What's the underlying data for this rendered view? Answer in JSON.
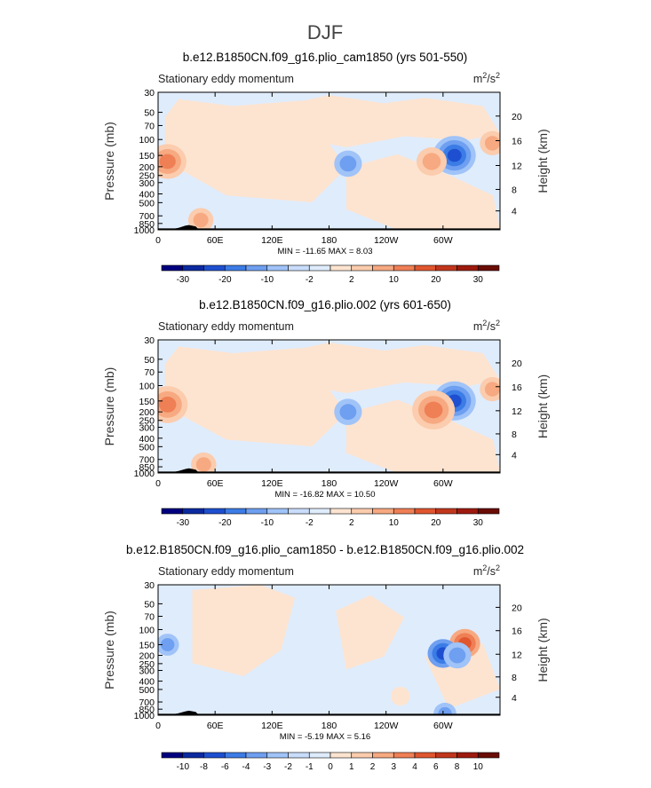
{
  "figure_title": "DJF",
  "chart_data": [
    {
      "type": "heatmap",
      "title": "b.e12.B1850CN.f09_g16.plio_cam1850 (yrs 501-550)",
      "subtitle_left": "Stationary eddy momentum",
      "units": "m²/s²",
      "units_base": "m",
      "units_exp1": "2",
      "units_mid": "/s",
      "units_exp2": "2",
      "ylabel": "Pressure (mb)",
      "ylabel_right": "Height (km)",
      "x_ticks": [
        "0",
        "60E",
        "120E",
        "180",
        "120W",
        "60W"
      ],
      "x_tick_lon": [
        0,
        60,
        120,
        180,
        240,
        300
      ],
      "xlim": [
        0,
        360
      ],
      "y_ticks": [
        "30",
        "50",
        "70",
        "100",
        "150",
        "200",
        "250",
        "300",
        "400",
        "500",
        "700",
        "850",
        "1000"
      ],
      "y_tick_p": [
        30,
        50,
        70,
        100,
        150,
        200,
        250,
        300,
        400,
        500,
        700,
        850,
        1000
      ],
      "ylim": [
        30,
        1000
      ],
      "y_scale": "log",
      "right_ticks": [
        "20",
        "16",
        "12",
        "8",
        "4"
      ],
      "right_tick_p": [
        55,
        103,
        194,
        357,
        617
      ],
      "min_max": "MIN = -11.65   MAX =   8.03",
      "colorbar_labels": [
        "-30",
        "-20",
        "-10",
        "-2",
        "2",
        "10",
        "20",
        "30"
      ],
      "features": [
        {
          "lon": 312,
          "p": 150,
          "value": -11.65
        },
        {
          "lon": 288,
          "p": 175,
          "value": 5
        },
        {
          "lon": 10,
          "p": 175,
          "value": 8.03
        },
        {
          "lon": 200,
          "p": 185,
          "value": -4
        },
        {
          "lon": 352,
          "p": 110,
          "value": 3
        },
        {
          "lon": 45,
          "p": 780,
          "value": 3
        }
      ]
    },
    {
      "type": "heatmap",
      "title": "b.e12.B1850CN.f09_g16.plio.002 (yrs 601-650)",
      "subtitle_left": "Stationary eddy momentum",
      "units": "m²/s²",
      "units_base": "m",
      "units_exp1": "2",
      "units_mid": "/s",
      "units_exp2": "2",
      "ylabel": "Pressure (mb)",
      "ylabel_right": "Height (km)",
      "x_ticks": [
        "0",
        "60E",
        "120E",
        "180",
        "120W",
        "60W"
      ],
      "x_tick_lon": [
        0,
        60,
        120,
        180,
        240,
        300
      ],
      "xlim": [
        0,
        360
      ],
      "y_ticks": [
        "30",
        "50",
        "70",
        "100",
        "150",
        "200",
        "250",
        "300",
        "400",
        "500",
        "700",
        "850",
        "1000"
      ],
      "y_tick_p": [
        30,
        50,
        70,
        100,
        150,
        200,
        250,
        300,
        400,
        500,
        700,
        850,
        1000
      ],
      "ylim": [
        30,
        1000
      ],
      "y_scale": "log",
      "right_ticks": [
        "20",
        "16",
        "12",
        "8",
        "4"
      ],
      "right_tick_p": [
        55,
        103,
        194,
        357,
        617
      ],
      "min_max": "MIN = -16.82   MAX =  10.50",
      "colorbar_labels": [
        "-30",
        "-20",
        "-10",
        "-2",
        "2",
        "10",
        "20",
        "30"
      ],
      "features": [
        {
          "lon": 312,
          "p": 150,
          "value": -16.82
        },
        {
          "lon": 290,
          "p": 190,
          "value": 10.5
        },
        {
          "lon": 10,
          "p": 165,
          "value": 9
        },
        {
          "lon": 200,
          "p": 200,
          "value": -4
        },
        {
          "lon": 352,
          "p": 110,
          "value": 3
        },
        {
          "lon": 48,
          "p": 800,
          "value": 3
        }
      ]
    },
    {
      "type": "heatmap",
      "title": "b.e12.B1850CN.f09_g16.plio_cam1850 - b.e12.B1850CN.f09_g16.plio.002",
      "subtitle_left": "Stationary eddy momentum",
      "units": "m²/s²",
      "units_base": "m",
      "units_exp1": "2",
      "units_mid": "/s",
      "units_exp2": "2",
      "ylabel": "Pressure (mb)",
      "ylabel_right": "Height (km)",
      "x_ticks": [
        "0",
        "60E",
        "120E",
        "180",
        "120W",
        "60W"
      ],
      "x_tick_lon": [
        0,
        60,
        120,
        180,
        240,
        300
      ],
      "xlim": [
        0,
        360
      ],
      "y_ticks": [
        "30",
        "50",
        "70",
        "100",
        "150",
        "200",
        "250",
        "300",
        "400",
        "500",
        "700",
        "850",
        "1000"
      ],
      "y_tick_p": [
        30,
        50,
        70,
        100,
        150,
        200,
        250,
        300,
        400,
        500,
        700,
        850,
        1000
      ],
      "ylim": [
        30,
        1000
      ],
      "y_scale": "log",
      "right_ticks": [
        "20",
        "16",
        "12",
        "8",
        "4"
      ],
      "right_tick_p": [
        55,
        103,
        194,
        357,
        617
      ],
      "min_max": "MIN =  -5.19   MAX =   5.16",
      "colorbar_labels": [
        "-10",
        "-8",
        "-6",
        "-4",
        "-3",
        "-2",
        "-1",
        "0",
        "1",
        "2",
        "3",
        "4",
        "6",
        "8",
        "10"
      ],
      "features": [
        {
          "lon": 323,
          "p": 145,
          "value": 5.16
        },
        {
          "lon": 300,
          "p": 190,
          "value": -5.19
        },
        {
          "lon": 315,
          "p": 200,
          "value": -4
        },
        {
          "lon": 10,
          "p": 150,
          "value": -2
        },
        {
          "lon": 302,
          "p": 960,
          "value": -2
        },
        {
          "lon": 255,
          "p": 600,
          "value": 0.5
        }
      ]
    }
  ]
}
